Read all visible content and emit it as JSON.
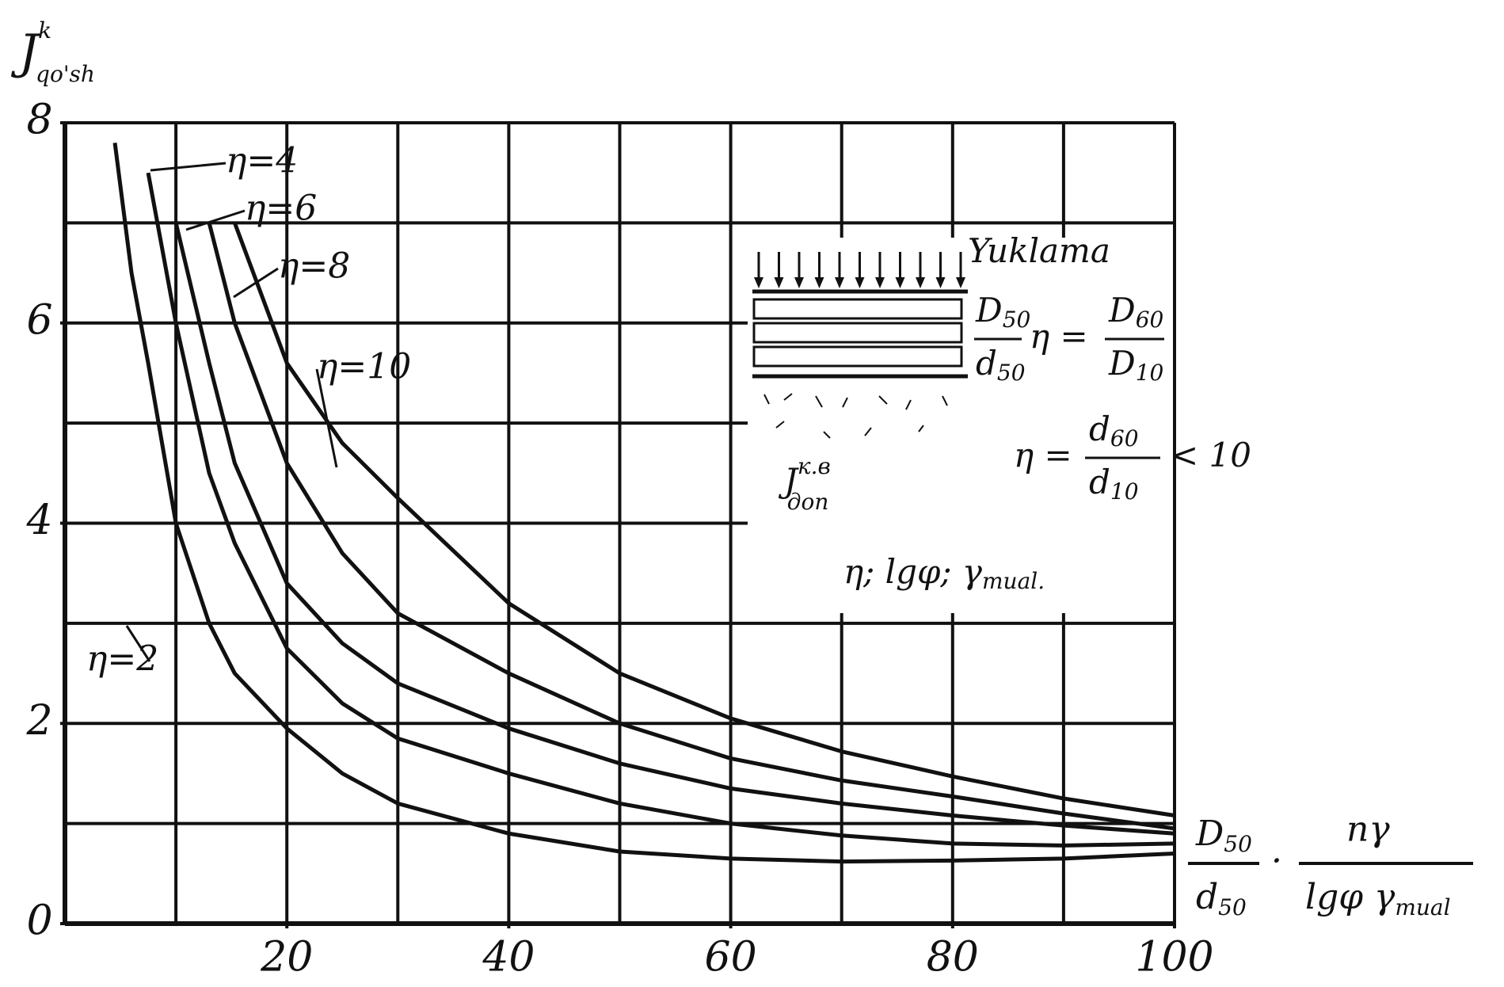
{
  "chart_data": {
    "type": "line",
    "y_label": {
      "main": "J",
      "sup": "k",
      "sub": "qo'sh"
    },
    "x_label": {
      "num1": "D",
      "num1_sub": "50",
      "den1": "d",
      "den1_sub": "50",
      "dot": "·",
      "num2": "nγ",
      "den2": "lgφ γ",
      "den2_sub": "mual"
    },
    "x": [
      4.5,
      6,
      7.5,
      10,
      13,
      15.3,
      20,
      25,
      30,
      40,
      50,
      60,
      70,
      80,
      90,
      100
    ],
    "series": [
      {
        "name": "η=2",
        "color": "#111111",
        "values": [
          7.8,
          6.5,
          5.6,
          4.0,
          3.0,
          2.5,
          1.95,
          1.5,
          1.2,
          0.9,
          0.72,
          0.65,
          0.62,
          0.63,
          0.65,
          0.7
        ]
      },
      {
        "name": "η=4",
        "color": "#111111",
        "values": [
          null,
          null,
          7.5,
          6.0,
          4.5,
          3.8,
          2.75,
          2.2,
          1.85,
          1.5,
          1.2,
          1.0,
          0.88,
          0.8,
          0.78,
          0.8
        ]
      },
      {
        "name": "η=6",
        "color": "#111111",
        "values": [
          null,
          null,
          null,
          7.0,
          5.6,
          4.6,
          3.4,
          2.8,
          2.4,
          1.95,
          1.6,
          1.35,
          1.2,
          1.08,
          0.98,
          0.9
        ]
      },
      {
        "name": "η=8",
        "color": "#111111",
        "values": [
          null,
          null,
          null,
          null,
          7.0,
          6.0,
          4.6,
          3.7,
          3.1,
          2.5,
          2.0,
          1.65,
          1.43,
          1.27,
          1.1,
          0.95
        ]
      },
      {
        "name": "η=10",
        "color": "#111111",
        "values": [
          null,
          null,
          null,
          null,
          null,
          7.0,
          5.6,
          4.8,
          4.25,
          3.2,
          2.5,
          2.05,
          1.72,
          1.47,
          1.25,
          1.08
        ]
      }
    ],
    "xlim": [
      0,
      100
    ],
    "xticks": [
      20,
      40,
      60,
      80,
      100
    ],
    "ylim": [
      0,
      8
    ],
    "yticks": [
      0,
      2,
      4,
      6,
      8
    ],
    "grid_x_step": 10,
    "grid_y_step": 1,
    "grid": true,
    "inset": {
      "load": "Yuklama",
      "d1": "D",
      "d1_sub": "50",
      "d2": "d",
      "d2_sub": "50",
      "eta_eq": "η =",
      "n1": "D",
      "n1_sub": "60",
      "m1": "D",
      "m1_sub": "10",
      "eta2": "η =",
      "n2": "d",
      "n2_sub": "60",
      "m2": "d",
      "m2_sub": "10",
      "lt": "< 10",
      "j": "J",
      "j_sup": "к.в",
      "j_sub": "доп",
      "params": "η; lgφ; γ",
      "params_sub": "mual."
    }
  }
}
